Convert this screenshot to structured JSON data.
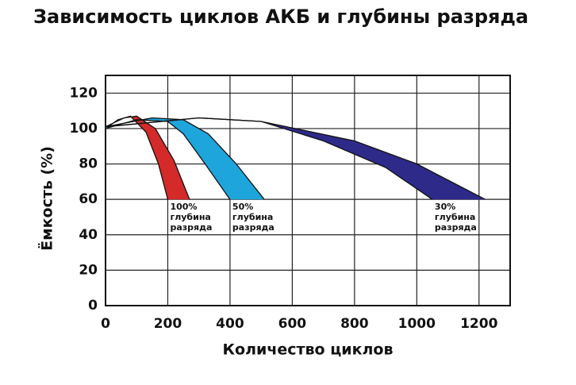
{
  "chart_data": {
    "type": "band",
    "title": "Зависимость циклов АКБ и глубины разряда",
    "xlabel": "Количество циклов",
    "ylabel": "Ёмкость (%)",
    "xlim": [
      0,
      1300
    ],
    "ylim": [
      0,
      130
    ],
    "xticks": [
      0,
      200,
      400,
      600,
      800,
      1000,
      1200
    ],
    "yticks": [
      0,
      20,
      40,
      60,
      80,
      100,
      120
    ],
    "grid": true,
    "series": [
      {
        "label_lines": [
          "100%",
          "глубина",
          "разряда"
        ],
        "color": "#d42a2a",
        "edge_a": {
          "x": [
            0,
            40,
            80,
            130,
            170,
            200
          ],
          "values": [
            100,
            105,
            107,
            98,
            80,
            60
          ]
        },
        "edge_b": {
          "x": [
            0,
            60,
            100,
            160,
            220,
            270
          ],
          "values": [
            101,
            106,
            107,
            100,
            82,
            60
          ]
        }
      },
      {
        "label_lines": [
          "50%",
          "глубина",
          "разряда"
        ],
        "color": "#1ea6dc",
        "edge_a": {
          "x": [
            0,
            100,
            200,
            250,
            320,
            400
          ],
          "values": [
            100,
            105,
            104,
            97,
            80,
            60
          ]
        },
        "edge_b": {
          "x": [
            0,
            150,
            250,
            330,
            420,
            510
          ],
          "values": [
            101,
            106,
            105,
            97,
            80,
            60
          ]
        }
      },
      {
        "label_lines": [
          "30%",
          "глубина",
          "разряда"
        ],
        "color": "#2e2a8a",
        "edge_a": {
          "x": [
            0,
            300,
            500,
            700,
            900,
            1050
          ],
          "values": [
            101,
            106,
            104,
            93,
            78,
            60
          ]
        },
        "edge_b": {
          "x": [
            0,
            300,
            500,
            800,
            1000,
            1220
          ],
          "values": [
            101,
            106,
            104,
            93,
            80,
            60
          ]
        }
      }
    ]
  }
}
